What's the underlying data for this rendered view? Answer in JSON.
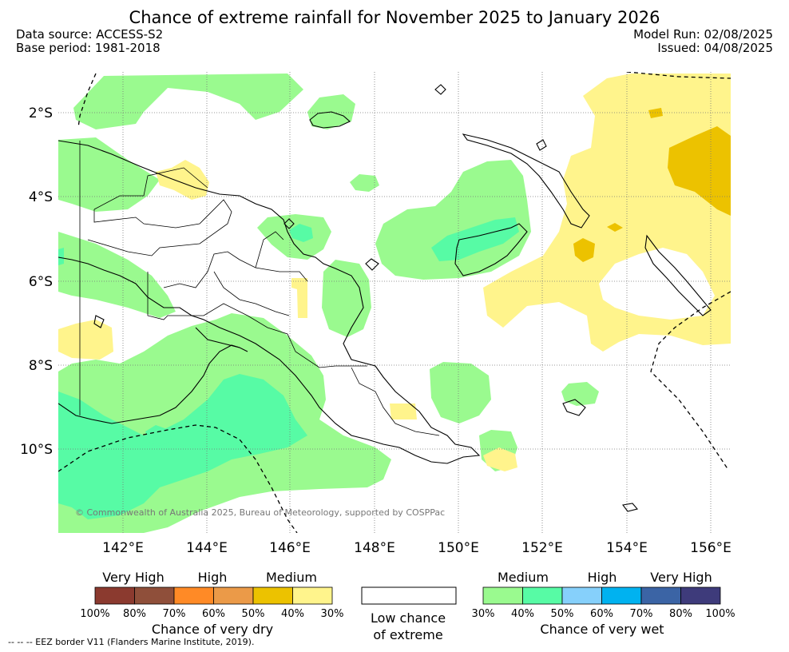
{
  "title": "Chance of extreme rainfall for November 2025 to January 2026",
  "meta": {
    "data_source": "Data source: ACCESS-S2",
    "base_period": "Base period: 1981-2018",
    "model_run": "Model Run: 02/08/2025",
    "issued": "Issued: 04/08/2025"
  },
  "map": {
    "lat_labels": [
      "2°S",
      "4°S",
      "6°S",
      "8°S",
      "10°S"
    ],
    "lon_labels": [
      "142°E",
      "144°E",
      "146°E",
      "148°E",
      "150°E",
      "152°E",
      "154°E",
      "156°E"
    ],
    "copyright": "© Commonwealth of Australia 2025, Bureau of Meteorology, supported by COSPPac"
  },
  "legend": {
    "dry": {
      "categories": [
        "Very High",
        "High",
        "Medium"
      ],
      "ticks": [
        "100%",
        "80%",
        "70%",
        "60%",
        "50%",
        "40%",
        "30%"
      ],
      "colors": [
        "#8b3a2f",
        "#8f4f3a",
        "#ff8a26",
        "#eb9a48",
        "#ecc200",
        "#fff48c"
      ],
      "caption": "Chance of very dry"
    },
    "low": {
      "caption_line1": "Low chance",
      "caption_line2": "of extreme"
    },
    "wet": {
      "categories": [
        "Medium",
        "High",
        "Very High"
      ],
      "ticks": [
        "30%",
        "40%",
        "50%",
        "60%",
        "70%",
        "80%",
        "100%"
      ],
      "colors": [
        "#9afa8f",
        "#57fba5",
        "#86d0fb",
        "#00b2f0",
        "#3b64a5",
        "#3e3b7b"
      ],
      "caption": "Chance of very wet"
    }
  },
  "footnote": "-- -- -- EEZ border V11 (Flanders Marine Institute, 2019)."
}
